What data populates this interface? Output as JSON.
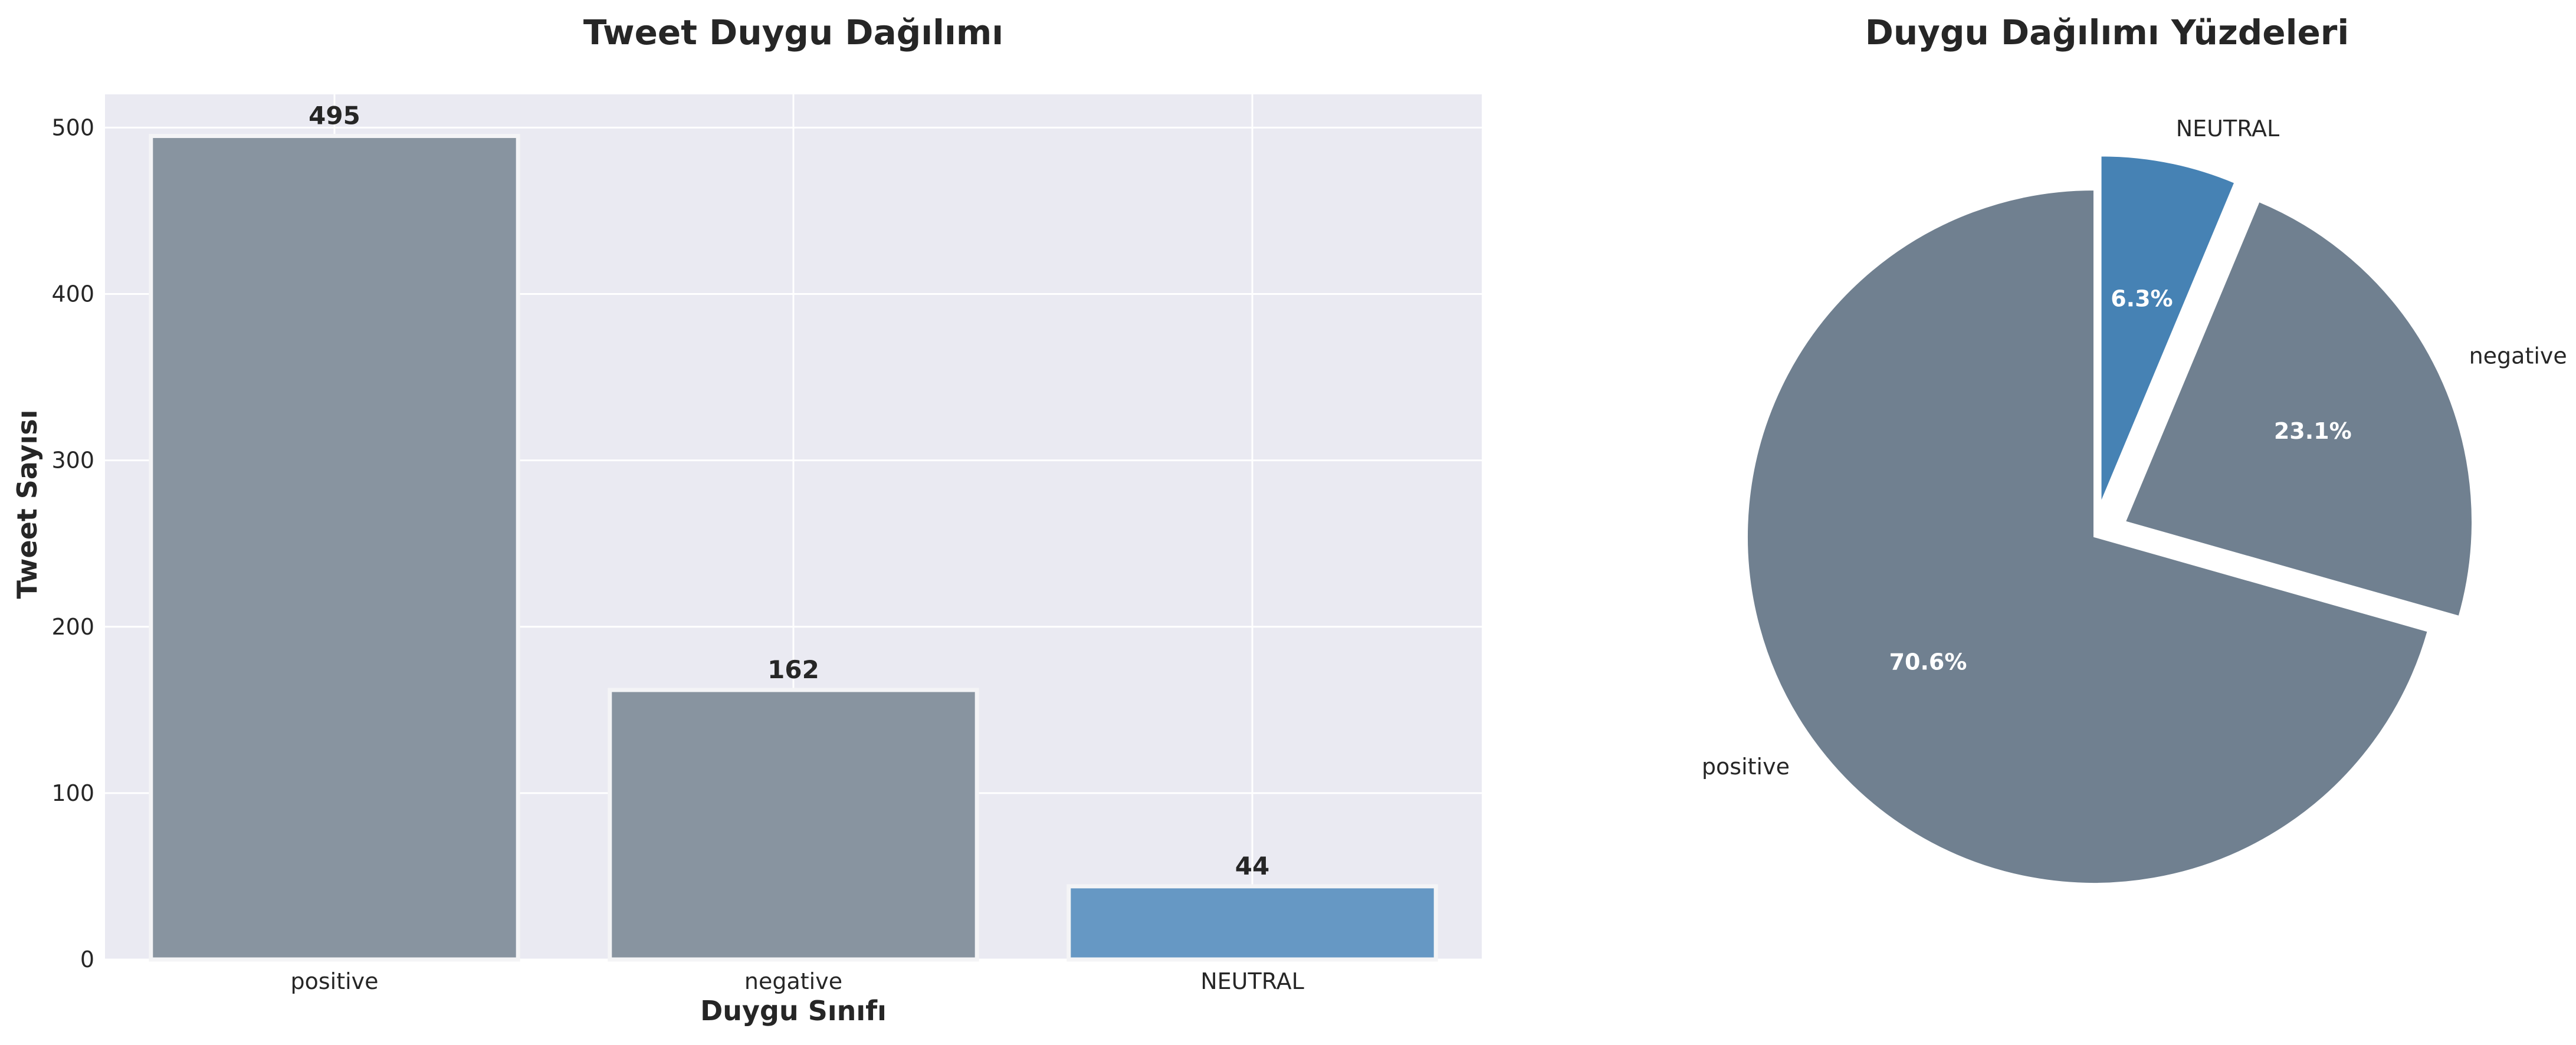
{
  "chart_data": [
    {
      "type": "bar",
      "title": "Tweet Duygu Dağılımı",
      "xlabel": "Duygu Sınıfı",
      "ylabel": "Tweet Sayısı",
      "categories": [
        "positive",
        "negative",
        "NEUTRAL"
      ],
      "values": [
        495,
        162,
        44
      ],
      "data_labels": [
        "495",
        "162",
        "44"
      ],
      "ylim": [
        0,
        520
      ],
      "yticks": [
        0,
        100,
        200,
        300,
        400,
        500
      ],
      "colors": [
        "#8894a0",
        "#8894a0",
        "#6698c4"
      ],
      "grid": true,
      "background": "#eaeaf2"
    },
    {
      "type": "pie",
      "title": "Duygu Dağılımı Yüzdeleri",
      "labels": [
        "NEUTRAL",
        "negative",
        "positive"
      ],
      "values": [
        6.3,
        23.1,
        70.6
      ],
      "pct_labels": [
        "6.3%",
        "23.1%",
        "70.6%"
      ],
      "colors": [
        "#4682b4",
        "#708090",
        "#708090"
      ],
      "exploded": [
        true,
        true,
        false
      ],
      "start_angle": 90,
      "direction": "clockwise"
    }
  ]
}
